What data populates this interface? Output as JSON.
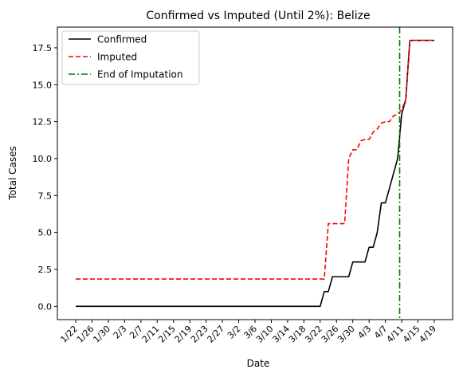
{
  "chart_data": {
    "type": "line",
    "title": "Confirmed vs Imputed (Until 2%): Belize",
    "xlabel": "Date",
    "ylabel": "Total Cases",
    "ylim": [
      -0.9,
      18.9
    ],
    "grid": false,
    "legend_position": "top-left",
    "x_tick_labels": [
      "1/22",
      "1/26",
      "1/30",
      "2/3",
      "2/7",
      "2/11",
      "2/15",
      "2/19",
      "2/23",
      "2/27",
      "3/2",
      "3/6",
      "3/10",
      "3/14",
      "3/18",
      "3/22",
      "3/26",
      "3/30",
      "4/3",
      "4/7",
      "4/11",
      "4/15",
      "4/19"
    ],
    "x_tick_day_index": [
      0,
      4,
      8,
      12,
      16,
      20,
      24,
      28,
      32,
      36,
      40,
      44,
      48,
      52,
      56,
      60,
      64,
      68,
      72,
      76,
      80,
      84,
      88
    ],
    "y_ticks": [
      0.0,
      2.5,
      5.0,
      7.5,
      10.0,
      12.5,
      15.0,
      17.5
    ],
    "y_tick_labels": [
      "0.0",
      "2.5",
      "5.0",
      "7.5",
      "10.0",
      "12.5",
      "15.0",
      "17.5"
    ],
    "x_day_range": [
      -4.5,
      92.5
    ],
    "series": [
      {
        "name": "Confirmed",
        "color": "#000000",
        "style": "solid",
        "points": [
          [
            0,
            0
          ],
          [
            60,
            0
          ],
          [
            61,
            1
          ],
          [
            62,
            1
          ],
          [
            63,
            2
          ],
          [
            67,
            2
          ],
          [
            68,
            3
          ],
          [
            71,
            3
          ],
          [
            72,
            4
          ],
          [
            73,
            4
          ],
          [
            74,
            5
          ],
          [
            75,
            7
          ],
          [
            76,
            7
          ],
          [
            77,
            8
          ],
          [
            78,
            9
          ],
          [
            79,
            10
          ],
          [
            80,
            13
          ],
          [
            81,
            14
          ],
          [
            82,
            18
          ],
          [
            88,
            18
          ]
        ]
      },
      {
        "name": "Imputed",
        "color": "#ff0000",
        "style": "dashed",
        "points": [
          [
            0,
            1.85
          ],
          [
            61,
            1.85
          ],
          [
            62,
            5.6
          ],
          [
            63,
            5.6
          ],
          [
            66,
            5.6
          ],
          [
            67,
            10.0
          ],
          [
            68,
            10.6
          ],
          [
            69,
            10.6
          ],
          [
            70,
            11.2
          ],
          [
            71,
            11.3
          ],
          [
            72,
            11.3
          ],
          [
            73,
            11.8
          ],
          [
            74,
            12.0
          ],
          [
            75,
            12.4
          ],
          [
            76,
            12.5
          ],
          [
            77,
            12.5
          ],
          [
            78,
            12.9
          ],
          [
            79,
            13.0
          ],
          [
            80,
            13.3
          ],
          [
            81,
            14.0
          ],
          [
            82,
            18
          ],
          [
            88,
            18
          ]
        ]
      }
    ],
    "vertical_line": {
      "name": "End of Imputation",
      "color": "#008000",
      "style": "dashdot",
      "x_day": 79.5
    }
  }
}
